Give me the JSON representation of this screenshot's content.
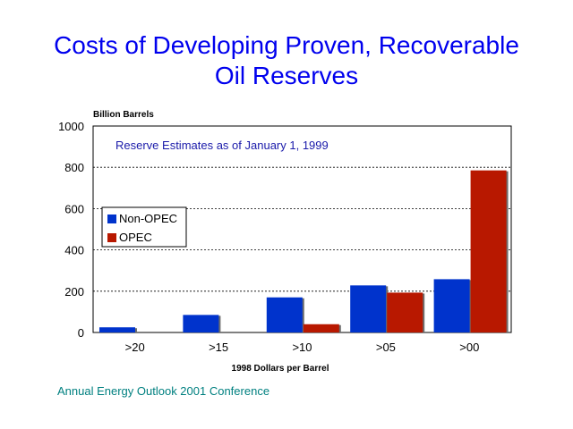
{
  "slide": {
    "title_line1": "Costs of Developing Proven, Recoverable",
    "title_line2": "Oil Reserves",
    "footer": "Annual Energy Outlook 2001 Conference"
  },
  "colors": {
    "title": "#0000ee",
    "footer": "#008080",
    "non_opec": "#0033cc",
    "opec": "#b81800"
  },
  "chart_data": {
    "type": "bar",
    "title": "",
    "ylabel": "Billion Barrels",
    "xlabel": "1998 Dollars per Barrel",
    "annotation": "Reserve Estimates as of January 1, 1999",
    "categories": [
      ">20",
      ">15",
      ">10",
      ">05",
      ">00"
    ],
    "series": [
      {
        "name": "Non-OPEC",
        "values": [
          25,
          85,
          170,
          228,
          258
        ]
      },
      {
        "name": "OPEC",
        "values": [
          0,
          0,
          40,
          193,
          785
        ]
      }
    ],
    "ylim": [
      0,
      1000
    ],
    "yticks": [
      0,
      200,
      400,
      600,
      800,
      1000
    ],
    "grid": true,
    "legend_position": "middle-left"
  }
}
